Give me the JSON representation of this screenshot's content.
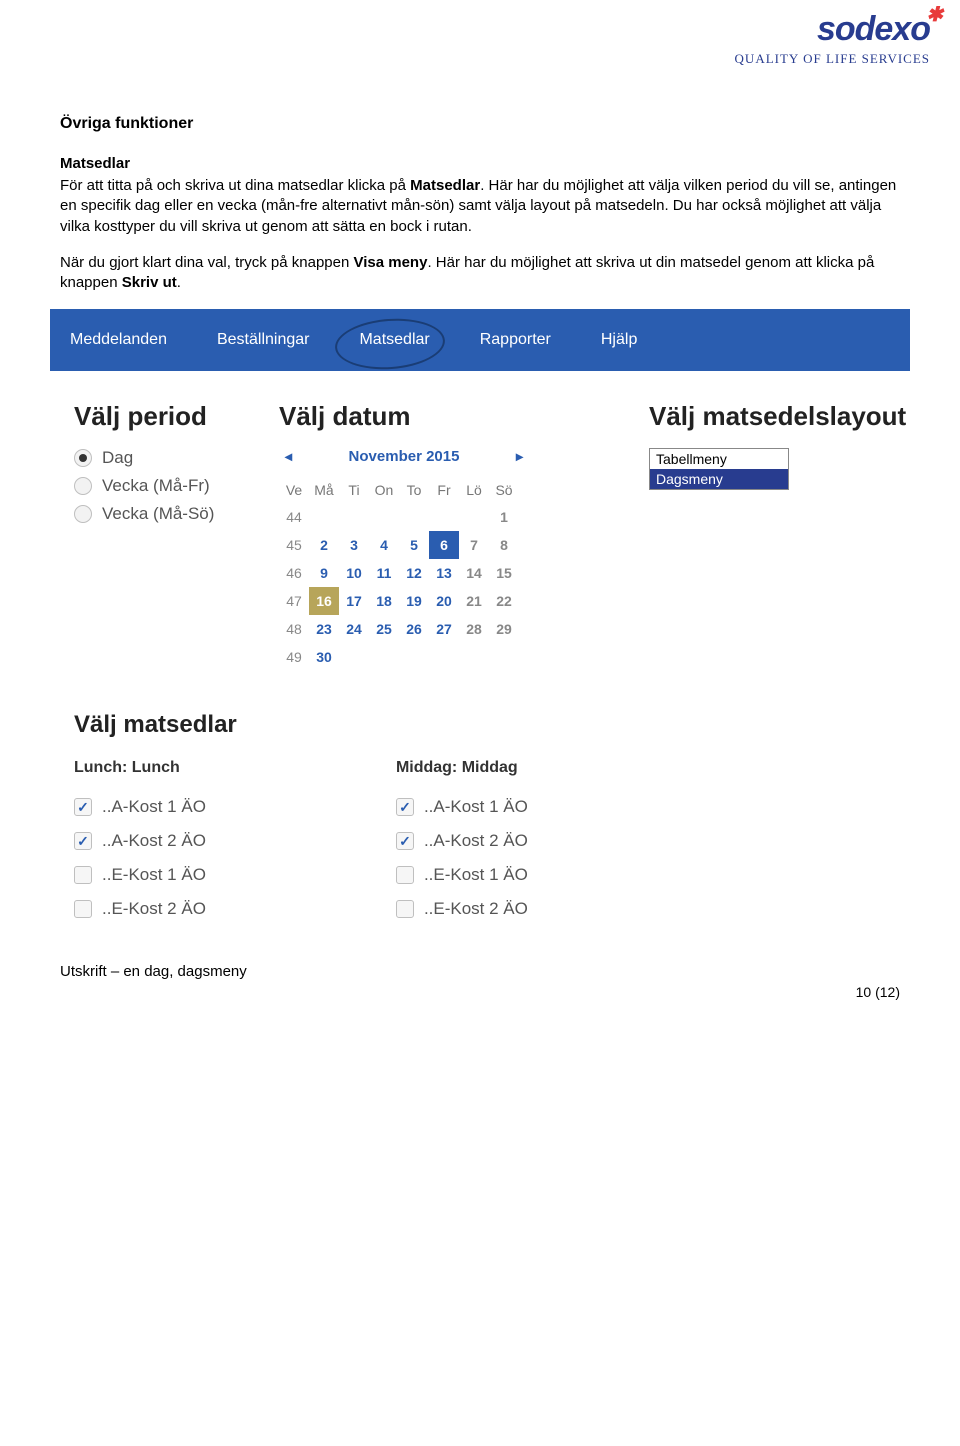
{
  "logo": {
    "wordmark": "sodexo",
    "star": "✱",
    "tagline": "QUALITY OF LIFE SERVICES"
  },
  "doc": {
    "heading": "Övriga funktioner",
    "sub1": "Matsedlar",
    "p1_a": "För att titta på och skriva ut dina matsedlar klicka på ",
    "p1_b_bold": "Matsedlar",
    "p1_c": ". Här har du möjlighet att välja vilken period du vill se, antingen en specifik dag eller en vecka (mån-fre alternativt mån-sön) samt välja layout på matsedeln. Du har också möjlighet att välja vilka kosttyper du vill skriva ut genom att sätta en bock i rutan.",
    "p2_a": "När du gjort klart dina val, tryck på knappen ",
    "p2_b_bold": "Visa meny",
    "p2_c": ". Här har du möjlighet att skriva ut din matsedel genom att klicka på knappen ",
    "p2_d_bold": "Skriv ut",
    "p2_e": ".",
    "caption": "Utskrift – en dag, dagsmeny",
    "page_num": "10 (12)"
  },
  "nav": {
    "items": [
      "Meddelanden",
      "Beställningar",
      "Matsedlar",
      "Rapporter",
      "Hjälp"
    ],
    "circled_index": 2,
    "bg": "#2a5db0",
    "fg": "#ffffff"
  },
  "period": {
    "title": "Välj period",
    "options": [
      "Dag",
      "Vecka (Må-Fr)",
      "Vecka (Må-Sö)"
    ],
    "selected_index": 0
  },
  "date": {
    "title": "Välj datum",
    "month_label": "November 2015",
    "weekday_headers": [
      "Ve",
      "Må",
      "Ti",
      "On",
      "To",
      "Fr",
      "Lö",
      "Sö"
    ],
    "rows": [
      {
        "wk": "44",
        "cells": [
          "",
          "",
          "",
          "",
          "",
          "",
          "1"
        ]
      },
      {
        "wk": "45",
        "cells": [
          "2",
          "3",
          "4",
          "5",
          "6",
          "7",
          "8"
        ]
      },
      {
        "wk": "46",
        "cells": [
          "9",
          "10",
          "11",
          "12",
          "13",
          "14",
          "15"
        ]
      },
      {
        "wk": "47",
        "cells": [
          "16",
          "17",
          "18",
          "19",
          "20",
          "21",
          "22"
        ]
      },
      {
        "wk": "48",
        "cells": [
          "23",
          "24",
          "25",
          "26",
          "27",
          "28",
          "29"
        ]
      },
      {
        "wk": "49",
        "cells": [
          "30",
          "",
          "",
          "",
          "",
          "",
          ""
        ]
      }
    ],
    "highlight_blue": {
      "row": 1,
      "col": 4
    },
    "highlight_gold": {
      "row": 3,
      "col": 0
    },
    "weekend_cols": [
      5,
      6
    ],
    "link_color": "#2a5db0"
  },
  "layout": {
    "title": "Välj matsedelslayout",
    "options": [
      "Tabellmeny",
      "Dagsmeny"
    ],
    "selected_index": 1,
    "sel_bg": "#283c8f",
    "sel_fg": "#ffffff"
  },
  "meals": {
    "title": "Välj matsedlar",
    "columns": [
      {
        "header": "Lunch: Lunch",
        "items": [
          {
            "label": "..A-Kost 1 ÄO",
            "checked": true
          },
          {
            "label": "..A-Kost 2 ÄO",
            "checked": true
          },
          {
            "label": "..E-Kost 1 ÄO",
            "checked": false
          },
          {
            "label": "..E-Kost 2 ÄO",
            "checked": false
          }
        ]
      },
      {
        "header": "Middag: Middag",
        "items": [
          {
            "label": "..A-Kost 1 ÄO",
            "checked": true
          },
          {
            "label": "..A-Kost 2 ÄO",
            "checked": true
          },
          {
            "label": "..E-Kost 1 ÄO",
            "checked": false
          },
          {
            "label": "..E-Kost 2 ÄO",
            "checked": false
          }
        ]
      }
    ]
  }
}
